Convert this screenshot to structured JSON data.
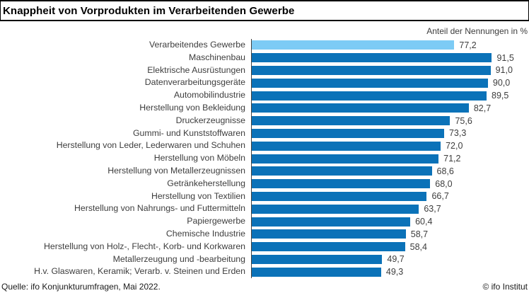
{
  "title": "Knappheit von Vorprodukten im Verarbeitenden Gewerbe",
  "units_label": "Anteil der Nennungen in %",
  "footer": {
    "source": "Quelle: ifo Konjunkturumfragen, Mai 2022.",
    "credit": "© ifo Institut"
  },
  "colors": {
    "highlight_bar": "#7dcbf5",
    "bar": "#0b72b8",
    "axis": "#3f3f3f",
    "text": "#3d3d3d"
  },
  "chart_data": {
    "type": "bar",
    "orientation": "horizontal",
    "title": "Knappheit von Vorprodukten im Verarbeitenden Gewerbe",
    "xlabel": "Anteil der Nennungen in %",
    "xlim": [
      0,
      100
    ],
    "grid": false,
    "legend": false,
    "highlight_index": 0,
    "categories": [
      "Verarbeitendes Gewerbe",
      "Maschinenbau",
      "Elektrische Ausrüstungen",
      "Datenverarbeitungsgeräte",
      "Automobilindustrie",
      "Herstellung von Bekleidung",
      "Druckerzeugnisse",
      "Gummi- und Kunststoffwaren",
      "Herstellung von Leder, Lederwaren und Schuhen",
      "Herstellung von Möbeln",
      "Herstellung von Metallerzeugnissen",
      "Getränkeherstellung",
      "Herstellung von Textilien",
      "Herstellung von Nahrungs- und Futtermitteln",
      "Papiergewerbe",
      "Chemische Industrie",
      "Herstellung von Holz-, Flecht-, Korb- und Korkwaren",
      "Metallerzeugung und -bearbeitung",
      "H.v. Glaswaren, Keramik; Verarb. v. Steinen und Erden"
    ],
    "values": [
      77.2,
      91.5,
      91.0,
      90.0,
      89.5,
      82.7,
      75.6,
      73.3,
      72.0,
      71.2,
      68.6,
      68.0,
      66.7,
      63.7,
      60.4,
      58.7,
      58.4,
      49.7,
      49.3
    ],
    "value_labels": [
      "77,2",
      "91,5",
      "91,0",
      "90,0",
      "89,5",
      "82,7",
      "75,6",
      "73,3",
      "72,0",
      "71,2",
      "68,6",
      "68,0",
      "66,7",
      "63,7",
      "60,4",
      "58,7",
      "58,4",
      "49,7",
      "49,3"
    ]
  }
}
